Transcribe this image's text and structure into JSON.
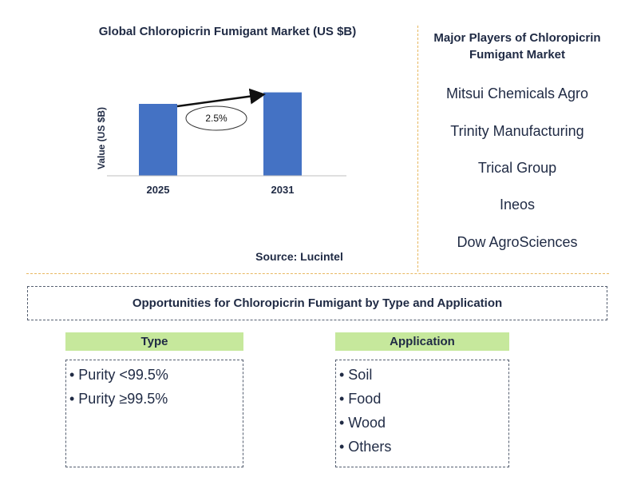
{
  "chart_data": {
    "type": "bar",
    "title": "Global Chloropicrin Fumigant Market (US $B)",
    "xlabel": "",
    "ylabel": "Value (US $B)",
    "categories": [
      "2025",
      "2031"
    ],
    "values": [
      1.0,
      1.16
    ],
    "ylim": [
      0,
      1.5
    ],
    "bar_color": "#4472c4",
    "annotation": {
      "label": "2.5%",
      "from": "2025",
      "to": "2031"
    },
    "grid": false
  },
  "source": "Source: Lucintel",
  "players": {
    "title": "Major Players of Chloropicrin Fumigant Market",
    "items": [
      "Mitsui Chemicals Agro",
      "Trinity Manufacturing",
      "Trical Group",
      "Ineos",
      "Dow AgroSciences"
    ]
  },
  "opportunities": {
    "title": "Opportunities for Chloropicrin Fumigant by Type and Application",
    "type": {
      "header": "Type",
      "items": [
        "• Purity <99.5%",
        "• Purity ≥99.5%"
      ]
    },
    "application": {
      "header": "Application",
      "items": [
        "• Soil",
        "• Food",
        "• Wood",
        "• Others"
      ]
    }
  },
  "colors": {
    "accent_bar": "#4472c4",
    "header_green": "#c6e89c",
    "divider": "#e8b860",
    "text": "#1f2a44"
  }
}
